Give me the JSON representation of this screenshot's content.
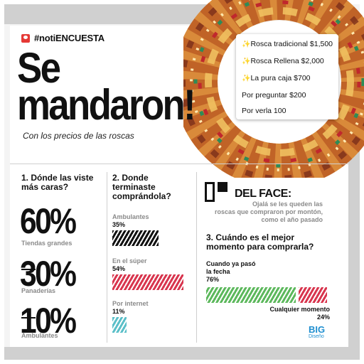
{
  "header": {
    "tag": "#notiENCUESTA"
  },
  "title": {
    "line1": "Se",
    "line2": "mandaron!"
  },
  "subtitle": "Con los precios de las roscas",
  "prices": [
    {
      "label": "Rosca tradicional $1,500",
      "sparkle": true
    },
    {
      "label": "Rosca Rellena $2,000",
      "sparkle": true
    },
    {
      "label": "La pura caja $700",
      "sparkle": true
    },
    {
      "label": "Por preguntar $200",
      "sparkle": false
    },
    {
      "label": "Por  verla 100",
      "sparkle": false
    }
  ],
  "q1": {
    "title_line1": "1. Dónde las viste",
    "title_line2": "más caras?",
    "items": [
      {
        "pct": "60%",
        "label": "Tiendas grandes"
      },
      {
        "pct": "30%",
        "label": "Panaderías"
      },
      {
        "pct": "10%",
        "label": "Ambulantes"
      }
    ]
  },
  "q2": {
    "title_line1": "2. Donde",
    "title_line2": "terminaste",
    "title_line3": "comprándola?",
    "items": [
      {
        "label": "Ambulantes",
        "value": "35%",
        "fraction": 0.35,
        "color": "#111111"
      },
      {
        "label": "En el súper",
        "value": "54%",
        "fraction": 0.54,
        "color": "#d8354e"
      },
      {
        "label": "Por internet",
        "value": "11%",
        "fraction": 0.11,
        "color": "#5bbfc8"
      }
    ]
  },
  "face": {
    "title": "DEL FACE:",
    "line1": "Ojalá se les queden las",
    "line2": "roscas que compraron por montón,",
    "line3": "como el año pasado"
  },
  "q3": {
    "title_line1": "3. Cuándo es el mejor",
    "title_line2": "momento para comprarla?",
    "items": [
      {
        "label_line1": "Cuando ya pasó",
        "label_line2": "la fecha",
        "value": "76%",
        "fraction": 0.76,
        "color": "#5cb85c"
      },
      {
        "label_line1": "Cualquier momento",
        "label_line2": "",
        "value": "24%",
        "fraction": 0.24,
        "color": "#d8354e"
      }
    ]
  },
  "logo": {
    "name": "BIG",
    "sub": "Diseño"
  }
}
